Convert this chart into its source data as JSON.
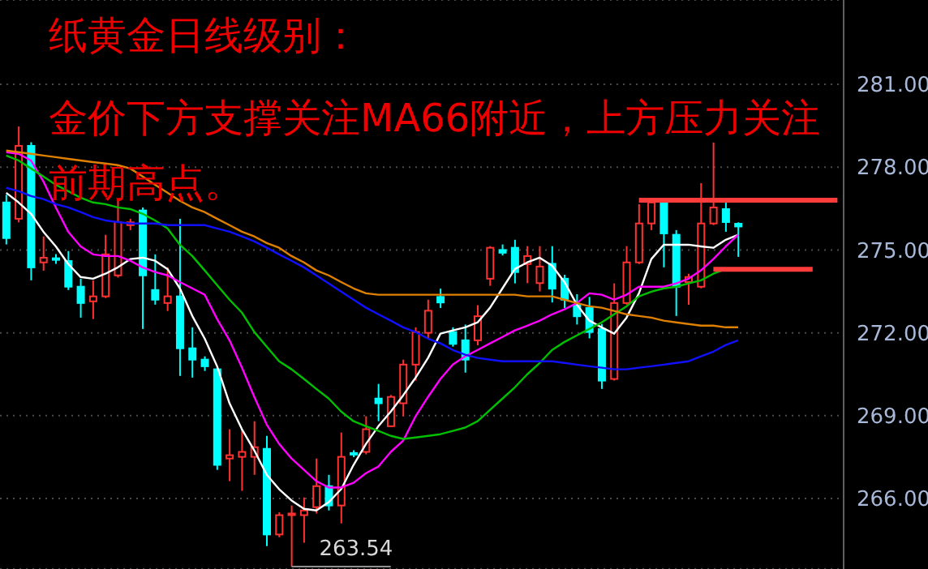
{
  "chart_data": {
    "type": "candlestick",
    "title": "纸黄金日线级别：",
    "subtitle": "金价下方支撑关注MA66附近，上方压力关注前期高点。",
    "categories": [
      null,
      null,
      null,
      null,
      null,
      null,
      null,
      null,
      null,
      null,
      null,
      null,
      null,
      null,
      null,
      null,
      null,
      null,
      null,
      null,
      null,
      null,
      null,
      null,
      null,
      null,
      null,
      null,
      null,
      null,
      null,
      null,
      null,
      null,
      null,
      null,
      null,
      null,
      null,
      null,
      null,
      null,
      null,
      null,
      null,
      null,
      null,
      null,
      null,
      null,
      null,
      null,
      null,
      null,
      null,
      null,
      null,
      null,
      null,
      null,
      null,
      null,
      null,
      null,
      null,
      null,
      null,
      null
    ],
    "ohlc": [
      [
        276.72,
        277.0,
        275.2,
        275.43
      ],
      [
        276.13,
        279.47,
        276.0,
        278.77
      ],
      [
        278.77,
        278.9,
        273.9,
        274.37
      ],
      [
        274.55,
        275.49,
        274.25,
        274.72
      ],
      [
        274.7,
        274.85,
        274.5,
        274.65
      ],
      [
        274.6,
        274.96,
        273.55,
        273.67
      ],
      [
        273.67,
        273.96,
        272.55,
        273.08
      ],
      [
        273.14,
        273.9,
        272.5,
        273.32
      ],
      [
        273.32,
        275.55,
        273.26,
        274.84
      ],
      [
        274.08,
        276.84,
        274.0,
        276.01
      ],
      [
        275.9,
        276.13,
        275.72,
        276.0
      ],
      [
        276.43,
        276.54,
        272.14,
        274.08
      ],
      [
        273.55,
        274.84,
        273.02,
        273.2
      ],
      [
        273.08,
        274.37,
        272.79,
        273.32
      ],
      [
        273.32,
        276.13,
        270.44,
        271.44
      ],
      [
        271.44,
        272.2,
        270.38,
        271.03
      ],
      [
        271.03,
        271.15,
        270.62,
        270.79
      ],
      [
        270.68,
        270.74,
        267.04,
        267.22
      ],
      [
        267.45,
        268.51,
        266.63,
        267.57
      ],
      [
        267.51,
        268.51,
        266.28,
        267.69
      ],
      [
        267.51,
        268.8,
        266.86,
        267.86
      ],
      [
        267.8,
        268.27,
        264.28,
        264.7
      ],
      [
        264.7,
        265.5,
        264.6,
        265.4
      ],
      [
        265.4,
        265.75,
        263.54,
        265.46
      ],
      [
        265.4,
        266.04,
        264.4,
        265.57
      ],
      [
        265.69,
        267.45,
        265.46,
        266.45
      ],
      [
        266.45,
        266.86,
        265.57,
        265.75
      ],
      [
        265.75,
        268.39,
        265.1,
        267.51
      ],
      [
        267.65,
        267.75,
        267.5,
        267.6
      ],
      [
        267.69,
        268.98,
        267.6,
        268.51
      ],
      [
        269.62,
        270.15,
        268.8,
        269.45
      ],
      [
        268.62,
        269.75,
        268.6,
        269.68
      ],
      [
        269.45,
        271.03,
        268.98,
        270.85
      ],
      [
        270.85,
        272.2,
        270.27,
        272.03
      ],
      [
        272.0,
        273.2,
        271.8,
        272.8
      ],
      [
        273.3,
        273.6,
        272.9,
        273.1
      ],
      [
        272.03,
        272.2,
        271.5,
        271.6
      ],
      [
        271.73,
        272.3,
        270.56,
        271.03
      ],
      [
        271.73,
        273.0,
        271.55,
        272.6
      ],
      [
        273.96,
        275.14,
        273.7,
        275.08
      ],
      [
        275.0,
        275.2,
        274.8,
        274.9
      ],
      [
        275.08,
        275.37,
        273.79,
        274.2
      ],
      [
        274.49,
        275.14,
        273.8,
        274.78
      ],
      [
        273.8,
        275.14,
        273.5,
        274.4
      ],
      [
        274.5,
        275.14,
        273.1,
        273.6
      ],
      [
        273.96,
        274.1,
        272.9,
        273.2
      ],
      [
        273.0,
        273.4,
        272.3,
        272.6
      ],
      [
        272.9,
        273.3,
        271.8,
        272.03
      ],
      [
        272.14,
        272.32,
        269.97,
        270.27
      ],
      [
        270.33,
        273.79,
        270.27,
        273.08
      ],
      [
        273.08,
        275.14,
        273.02,
        274.55
      ],
      [
        274.55,
        276.66,
        274.49,
        275.96
      ],
      [
        275.96,
        276.72,
        275.72,
        276.72
      ],
      [
        276.72,
        276.84,
        274.37,
        275.6
      ],
      [
        275.55,
        275.72,
        272.61,
        273.67
      ],
      [
        273.84,
        274.14,
        273.02,
        274.02
      ],
      [
        273.67,
        277.42,
        273.61,
        275.96
      ],
      [
        275.96,
        278.89,
        275.9,
        276.54
      ],
      [
        276.48,
        276.72,
        275.66,
        276.01
      ],
      [
        275.95,
        276.0,
        274.75,
        275.85
      ],
      null,
      null,
      null,
      null,
      null,
      null,
      null,
      null
    ],
    "colors": [
      "#00ffff",
      "#ff3232",
      "#00ffff",
      "#ff3232",
      "#00ffff",
      "#00ffff",
      "#00ffff",
      "#ff3232",
      "#ff3232",
      "#ff3232",
      "#ff3232",
      "#00ffff",
      "#00ffff",
      "#ff3232",
      "#00ffff",
      "#00ffff",
      "#00ffff",
      "#00ffff",
      "#ff3232",
      "#ff3232",
      "#ff3232",
      "#00ffff",
      "#ff3232",
      "#ff3232",
      "#ff3232",
      "#ff3232",
      "#00ffff",
      "#ff3232",
      "#00ffff",
      "#ff3232",
      "#00ffff",
      "#ff3232",
      "#ff3232",
      "#ff3232",
      "#ff3232",
      "#00ffff",
      "#00ffff",
      "#00ffff",
      "#ff3232",
      "#ff3232",
      "#00ffff",
      "#00ffff",
      "#ff3232",
      "#ff3232",
      "#00ffff",
      "#00ffff",
      "#00ffff",
      "#00ffff",
      "#00ffff",
      "#ff3232",
      "#ff3232",
      "#ff3232",
      "#ff3232",
      "#00ffff",
      "#00ffff",
      "#ff3232",
      "#ff3232",
      "#ff3232",
      "#00ffff",
      "#00ffff",
      null,
      null,
      null,
      null,
      null,
      null,
      null,
      null
    ],
    "series": [
      {
        "type": "line",
        "color": "#ffffff",
        "values": [
          277.07,
          276.72,
          276.31,
          275.66,
          275.13,
          274.49,
          274.02,
          273.96,
          274.14,
          274.37,
          274.67,
          274.72,
          274.61,
          274.31,
          273.61,
          272.61,
          271.79,
          270.79,
          269.45,
          268.51,
          267.74,
          266.86,
          266.34,
          265.93,
          265.63,
          265.57,
          265.87,
          266.34,
          267.22,
          267.98,
          268.62,
          269.15,
          269.74,
          270.38,
          271.09,
          271.97,
          272.09,
          272.2,
          272.38,
          272.91,
          273.61,
          274.31,
          274.55,
          274.72,
          274.43,
          273.84,
          273.02,
          272.44,
          272.2,
          271.97,
          272.55,
          273.43,
          274.67,
          275.19,
          275.19,
          275.19,
          275.13,
          275.08,
          275.37,
          275.55,
          null,
          null,
          null,
          null,
          null,
          null,
          null,
          null
        ]
      },
      {
        "type": "line",
        "color": "#ff00ff",
        "values": [
          278.54,
          278.48,
          278.24,
          277.48,
          276.54,
          275.66,
          275.13,
          274.84,
          274.78,
          274.78,
          274.61,
          274.37,
          274.2,
          274.08,
          273.84,
          273.61,
          273.38,
          272.5,
          271.73,
          270.74,
          269.68,
          268.68,
          267.98,
          267.45,
          267.04,
          266.63,
          266.4,
          266.4,
          266.57,
          266.92,
          267.16,
          267.69,
          268.1,
          268.98,
          269.68,
          270.33,
          270.85,
          271.15,
          271.38,
          271.62,
          271.85,
          272.09,
          272.26,
          272.44,
          272.67,
          272.85,
          273.08,
          273.43,
          273.38,
          273.2,
          273.38,
          273.67,
          273.67,
          273.67,
          273.79,
          273.96,
          274.26,
          274.67,
          275.13,
          275.55,
          null,
          null,
          null,
          null,
          null,
          null,
          null,
          null
        ]
      },
      {
        "type": "line",
        "color": "#00c000",
        "values": [
          278.42,
          278.24,
          277.95,
          277.66,
          277.36,
          277.13,
          276.89,
          276.72,
          276.66,
          276.54,
          276.48,
          276.31,
          276.07,
          275.78,
          275.19,
          274.78,
          274.26,
          273.73,
          273.2,
          272.73,
          272.03,
          271.5,
          270.97,
          270.68,
          270.33,
          269.97,
          269.62,
          269.15,
          268.8,
          268.62,
          268.45,
          268.27,
          268.16,
          268.21,
          268.27,
          268.33,
          268.45,
          268.57,
          268.8,
          269.21,
          269.62,
          270.03,
          270.5,
          270.91,
          271.38,
          271.67,
          271.91,
          272.14,
          272.38,
          272.67,
          272.96,
          273.32,
          273.49,
          273.61,
          273.67,
          273.79,
          273.9,
          274.14,
          274.31,
          null,
          null,
          null,
          null,
          null,
          null,
          null,
          null,
          null
        ]
      },
      {
        "type": "line",
        "color": "#e08000",
        "values": [
          278.6,
          278.54,
          278.48,
          278.42,
          278.36,
          278.3,
          278.24,
          278.18,
          278.13,
          278.07,
          277.95,
          277.66,
          277.36,
          277.07,
          276.78,
          276.54,
          276.37,
          276.13,
          275.9,
          275.66,
          275.49,
          275.25,
          275.08,
          274.78,
          274.55,
          274.26,
          274.08,
          273.84,
          273.61,
          273.43,
          273.38,
          273.38,
          273.38,
          273.38,
          273.38,
          273.38,
          273.38,
          273.38,
          273.38,
          273.38,
          273.38,
          273.38,
          273.32,
          273.32,
          273.32,
          273.2,
          273.08,
          272.96,
          272.91,
          272.79,
          272.67,
          272.61,
          272.55,
          272.44,
          272.38,
          272.32,
          272.26,
          272.26,
          272.2,
          272.2,
          null,
          null,
          null,
          null,
          null,
          null,
          null,
          null
        ]
      },
      {
        "type": "line",
        "color": "#1010ff",
        "values": [
          277.25,
          277.13,
          276.95,
          276.84,
          276.66,
          276.54,
          276.37,
          276.19,
          276.07,
          276.01,
          275.96,
          275.96,
          275.96,
          275.9,
          275.9,
          275.9,
          275.9,
          275.78,
          275.66,
          275.49,
          275.31,
          275.08,
          274.84,
          274.61,
          274.37,
          274.08,
          273.79,
          273.49,
          273.2,
          272.91,
          272.67,
          272.44,
          272.2,
          272.03,
          271.79,
          271.62,
          271.38,
          271.21,
          271.09,
          271.03,
          270.97,
          270.97,
          270.97,
          270.97,
          270.97,
          270.91,
          270.85,
          270.79,
          270.74,
          270.68,
          270.68,
          270.74,
          270.79,
          270.85,
          270.91,
          270.97,
          271.15,
          271.32,
          271.56,
          271.73,
          null,
          null,
          null,
          null,
          null,
          null,
          null,
          null
        ]
      },
      {
        "type": "line",
        "color": "#ff3c3c",
        "values": [
          null,
          null,
          null,
          null,
          null,
          null,
          null,
          null,
          null,
          null,
          null,
          null,
          null,
          null,
          null,
          null,
          null,
          null,
          null,
          null,
          null,
          null,
          null,
          null,
          null,
          null,
          null,
          null,
          null,
          null,
          null,
          null,
          null,
          null,
          null,
          null,
          null,
          null,
          null,
          null,
          null,
          null,
          null,
          null,
          null,
          null,
          null,
          null,
          null,
          null,
          null,
          276.8,
          276.8,
          276.8,
          276.8,
          276.8,
          276.8,
          276.8,
          276.8,
          276.8,
          276.8,
          276.8,
          276.8,
          276.8,
          276.8,
          276.8,
          276.8,
          276.8
        ]
      },
      {
        "type": "line",
        "color": "#ff3c3c",
        "values": [
          null,
          null,
          null,
          null,
          null,
          null,
          null,
          null,
          null,
          null,
          null,
          null,
          null,
          null,
          null,
          null,
          null,
          null,
          null,
          null,
          null,
          null,
          null,
          null,
          null,
          null,
          null,
          null,
          null,
          null,
          null,
          null,
          null,
          null,
          null,
          null,
          null,
          null,
          null,
          null,
          null,
          null,
          null,
          null,
          null,
          null,
          null,
          null,
          null,
          null,
          null,
          null,
          null,
          null,
          null,
          null,
          null,
          274.3,
          274.3,
          274.3,
          274.3,
          274.3,
          274.3,
          274.3,
          274.3,
          274.3,
          null,
          null
        ]
      }
    ],
    "annotations": [
      "263.54"
    ],
    "ylim": [
      263.45,
      284.05
    ],
    "yticks": [
      {
        "value": 266,
        "label": "266.00"
      },
      {
        "value": 269,
        "label": "269.00"
      },
      {
        "value": 272,
        "label": "272.00"
      },
      {
        "value": 275,
        "label": "275.00"
      },
      {
        "value": 278,
        "label": "278.00"
      },
      {
        "value": 281,
        "label": "281.00"
      }
    ],
    "grid": "y",
    "tick_labels": "y",
    "legend": false
  }
}
